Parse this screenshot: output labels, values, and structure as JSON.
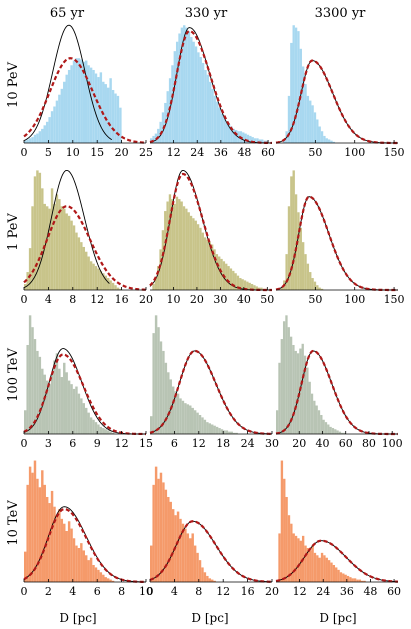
{
  "figure": {
    "column_titles": [
      "65 yr",
      "330 yr",
      "3300 yr"
    ],
    "row_labels": [
      "10 PeV",
      "1 PeV",
      "100 TeV",
      "10 TeV"
    ],
    "xlabel": "D [pc]",
    "colors": {
      "10 PeV": "#a8d8f0",
      "1 PeV": "#c8c48a",
      "100 TeV": "#b8c4b4",
      "10 TeV": "#f59a6a",
      "solid_curve": "#000000",
      "dashed_curve": "#b01818"
    }
  },
  "chart_data": [
    {
      "type": "bar",
      "row": "10 PeV",
      "column": "65 yr",
      "x_ticks": [
        0,
        5,
        10,
        15,
        20,
        25
      ],
      "xlim": [
        0,
        25
      ],
      "hist": {
        "start": 0,
        "bin_width": 0.5,
        "heights": [
          0.02,
          0.03,
          0.04,
          0.05,
          0.07,
          0.08,
          0.1,
          0.12,
          0.15,
          0.18,
          0.22,
          0.27,
          0.31,
          0.36,
          0.41,
          0.46,
          0.52,
          0.58,
          0.62,
          0.66,
          0.7,
          0.72,
          0.72,
          0.71,
          0.69,
          0.7,
          0.66,
          0.64,
          0.62,
          0.59,
          0.56,
          0.6,
          0.52,
          0.5,
          0.47,
          0.55,
          0.45,
          0.42,
          0.4,
          0.3,
          0.0,
          0.0,
          0.0,
          0.0,
          0.0,
          0.0,
          0.0,
          0.0,
          0.0,
          0.0
        ]
      },
      "solid": {
        "peak": 9.2,
        "sigma_left": 3.3,
        "sigma_right": 3.3,
        "amp": 1.0,
        "x_end": 18
      },
      "dashed": {
        "peak": 9.5,
        "sigma_left": 4.2,
        "sigma_right": 4.6,
        "amp": 0.72
      }
    },
    {
      "type": "bar",
      "row": "10 PeV",
      "column": "330 yr",
      "x_ticks": [
        12,
        24,
        36,
        48,
        60
      ],
      "xlim": [
        0,
        62
      ],
      "hist": {
        "start": 0,
        "bin_width": 1.2,
        "heights": [
          0.04,
          0.06,
          0.08,
          0.12,
          0.18,
          0.26,
          0.34,
          0.44,
          0.55,
          0.66,
          0.78,
          0.86,
          0.93,
          0.98,
          1.0,
          0.98,
          0.95,
          0.9,
          0.86,
          0.82,
          0.77,
          0.73,
          0.68,
          0.62,
          0.58,
          0.52,
          0.46,
          0.4,
          0.35,
          0.3,
          0.25,
          0.22,
          0.18,
          0.16,
          0.14,
          0.12,
          0.11,
          0.1,
          0.1,
          0.09,
          0.08,
          0.07,
          0.06,
          0.05,
          0.04,
          0.04,
          0.03,
          0.03,
          0.02,
          0.02,
          0.0
        ]
      },
      "solid": {
        "peak": 20,
        "sigma_left": 6.3,
        "sigma_right": 10.2,
        "amp": 0.98
      },
      "dashed": {
        "peak": 20,
        "sigma_left": 6.5,
        "sigma_right": 10.6,
        "amp": 0.95
      }
    },
    {
      "type": "bar",
      "row": "10 PeV",
      "column": "3300 yr",
      "x_ticks": [
        50,
        100,
        150
      ],
      "xlim": [
        0,
        155
      ],
      "hist": {
        "start": 0,
        "bin_width": 3,
        "heights": [
          0.0,
          0.0,
          0.0,
          0.02,
          0.1,
          0.4,
          0.85,
          1.0,
          0.98,
          0.95,
          0.8,
          0.65,
          0.5,
          0.4,
          0.36,
          0.32,
          0.26,
          0.2,
          0.14,
          0.1,
          0.06,
          0.04,
          0.03,
          0.02,
          0.01,
          0.0
        ]
      },
      "solid": {
        "peak": 46,
        "sigma_left": 14,
        "sigma_right": 26,
        "amp": 0.7
      },
      "dashed": {
        "peak": 46,
        "sigma_left": 14,
        "sigma_right": 26,
        "amp": 0.7
      }
    },
    {
      "type": "bar",
      "row": "1 PeV",
      "column": "65 yr",
      "x_ticks": [
        0,
        4,
        8,
        12,
        16,
        20
      ],
      "xlim": [
        0,
        20
      ],
      "hist": {
        "start": 0,
        "bin_width": 0.4,
        "heights": [
          0.05,
          0.15,
          0.35,
          0.7,
          0.95,
          1.0,
          0.98,
          0.85,
          0.72,
          0.7,
          0.68,
          0.85,
          0.72,
          0.8,
          0.76,
          0.7,
          0.68,
          0.64,
          0.62,
          0.58,
          0.54,
          0.48,
          0.44,
          0.4,
          0.36,
          0.32,
          0.28,
          0.24,
          0.22,
          0.2,
          0.18,
          0.16,
          0.14,
          0.12,
          0.1,
          0.08,
          0.06,
          0.04,
          0.02,
          0.01,
          0.0,
          0.0,
          0.0,
          0.0,
          0.0,
          0.0,
          0.0,
          0.0,
          0.0,
          0.0
        ]
      },
      "solid": {
        "peak": 7,
        "sigma_left": 2.5,
        "sigma_right": 2.9,
        "amp": 1.0,
        "x_end": 14
      },
      "dashed": {
        "peak": 7,
        "sigma_left": 3.2,
        "sigma_right": 3.8,
        "amp": 0.7
      }
    },
    {
      "type": "bar",
      "row": "1 PeV",
      "column": "330 yr",
      "x_ticks": [
        10,
        20,
        30,
        40,
        50
      ],
      "xlim": [
        0,
        52
      ],
      "hist": {
        "start": 0,
        "bin_width": 1,
        "heights": [
          0.0,
          0.05,
          0.1,
          0.2,
          0.34,
          0.5,
          0.66,
          0.74,
          0.8,
          0.76,
          0.72,
          0.78,
          0.76,
          0.74,
          0.7,
          0.68,
          0.65,
          0.62,
          0.6,
          0.58,
          0.55,
          0.52,
          0.48,
          0.44,
          0.42,
          0.4,
          0.38,
          0.34,
          0.3,
          0.28,
          0.26,
          0.24,
          0.22,
          0.2,
          0.18,
          0.16,
          0.14,
          0.12,
          0.1,
          0.09,
          0.08,
          0.07,
          0.06,
          0.05,
          0.04,
          0.03,
          0.02,
          0.02,
          0.01,
          0.01,
          0.0,
          0.0
        ]
      },
      "solid": {
        "peak": 14,
        "sigma_left": 5.3,
        "sigma_right": 8.2,
        "amp": 1.0
      },
      "dashed": {
        "peak": 14,
        "sigma_left": 5.5,
        "sigma_right": 8.5,
        "amp": 0.97
      }
    },
    {
      "type": "bar",
      "row": "1 PeV",
      "column": "3300 yr",
      "x_ticks": [
        50,
        100,
        150
      ],
      "xlim": [
        0,
        155
      ],
      "hist": {
        "start": 0,
        "bin_width": 3,
        "heights": [
          0.0,
          0.0,
          0.02,
          0.08,
          0.3,
          0.7,
          0.95,
          1.0,
          0.8,
          0.65,
          0.52,
          0.4,
          0.3,
          0.22,
          0.15,
          0.1,
          0.07,
          0.04,
          0.02,
          0.01,
          0.0
        ]
      },
      "solid": {
        "peak": 42,
        "sigma_left": 13,
        "sigma_right": 25,
        "amp": 0.78
      },
      "dashed": {
        "peak": 42,
        "sigma_left": 13,
        "sigma_right": 25,
        "amp": 0.78
      }
    },
    {
      "type": "bar",
      "row": "100 TeV",
      "column": "65 yr",
      "x_ticks": [
        0,
        3,
        6,
        9,
        12,
        15
      ],
      "xlim": [
        0,
        15
      ],
      "hist": {
        "start": 0,
        "bin_width": 0.3,
        "heights": [
          0.2,
          0.75,
          1.0,
          0.9,
          0.8,
          0.7,
          0.65,
          0.55,
          0.5,
          0.45,
          0.42,
          0.5,
          0.62,
          0.68,
          0.55,
          0.48,
          0.6,
          0.52,
          0.45,
          0.42,
          0.38,
          0.4,
          0.34,
          0.3,
          0.26,
          0.22,
          0.18,
          0.14,
          0.12,
          0.1,
          0.08,
          0.06,
          0.05,
          0.04,
          0.03,
          0.02,
          0.01,
          0.0,
          0.0,
          0.0,
          0.0,
          0.0,
          0.0,
          0.0,
          0.0,
          0.0,
          0.0,
          0.0,
          0.0,
          0.0
        ]
      },
      "solid": {
        "peak": 4.8,
        "sigma_left": 1.7,
        "sigma_right": 2.3,
        "amp": 0.72
      },
      "dashed": {
        "peak": 4.8,
        "sigma_left": 1.8,
        "sigma_right": 2.5,
        "amp": 0.67
      }
    },
    {
      "type": "bar",
      "row": "100 TeV",
      "column": "330 yr",
      "x_ticks": [
        6,
        12,
        18,
        24,
        30
      ],
      "xlim": [
        0,
        30
      ],
      "hist": {
        "start": 0,
        "bin_width": 0.6,
        "heights": [
          0.15,
          0.85,
          1.0,
          0.9,
          0.78,
          0.7,
          0.6,
          0.52,
          0.46,
          0.4,
          0.36,
          0.34,
          0.3,
          0.28,
          0.26,
          0.25,
          0.24,
          0.22,
          0.2,
          0.18,
          0.16,
          0.14,
          0.12,
          0.1,
          0.09,
          0.08,
          0.07,
          0.06,
          0.05,
          0.04,
          0.03,
          0.03,
          0.02,
          0.02,
          0.01,
          0.01,
          0.0,
          0.0,
          0.0,
          0.0,
          0.0,
          0.0,
          0.0,
          0.0,
          0.0,
          0.0,
          0.0,
          0.0,
          0.0,
          0.0
        ]
      },
      "solid": {
        "peak": 11,
        "sigma_left": 3.8,
        "sigma_right": 5.2,
        "amp": 0.7
      },
      "dashed": {
        "peak": 11,
        "sigma_left": 3.8,
        "sigma_right": 5.2,
        "amp": 0.7
      }
    },
    {
      "type": "bar",
      "row": "100 TeV",
      "column": "3300 yr",
      "x_ticks": [
        20,
        40,
        60,
        80,
        100
      ],
      "xlim": [
        0,
        105
      ],
      "hist": {
        "start": 0,
        "bin_width": 2,
        "heights": [
          0.2,
          0.6,
          0.8,
          0.95,
          1.0,
          0.9,
          0.82,
          0.75,
          0.7,
          0.68,
          0.72,
          0.76,
          0.66,
          0.56,
          0.44,
          0.34,
          0.28,
          0.24,
          0.2,
          0.16,
          0.12,
          0.1,
          0.08,
          0.06,
          0.05,
          0.04,
          0.03,
          0.02,
          0.01,
          0.01,
          0.0,
          0.0,
          0.0,
          0.0,
          0.0,
          0.0,
          0.0,
          0.0,
          0.0,
          0.0,
          0.0,
          0.0,
          0.0,
          0.0,
          0.0,
          0.0,
          0.0,
          0.0,
          0.0,
          0.0,
          0.0,
          0.0
        ]
      },
      "solid": {
        "peak": 32,
        "sigma_left": 10,
        "sigma_right": 16,
        "amp": 0.7
      },
      "dashed": {
        "peak": 32,
        "sigma_left": 10,
        "sigma_right": 16,
        "amp": 0.7
      }
    },
    {
      "type": "bar",
      "row": "10 TeV",
      "column": "65 yr",
      "x_ticks": [
        0,
        2,
        4,
        6,
        8,
        10
      ],
      "xlim": [
        0,
        10
      ],
      "hist": {
        "start": 0,
        "bin_width": 0.2,
        "heights": [
          0.25,
          0.8,
          0.95,
          0.9,
          1.0,
          0.85,
          0.78,
          0.92,
          0.8,
          0.7,
          0.65,
          0.75,
          0.62,
          0.55,
          0.6,
          0.52,
          0.48,
          0.42,
          0.5,
          0.44,
          0.36,
          0.3,
          0.28,
          0.32,
          0.26,
          0.22,
          0.18,
          0.2,
          0.14,
          0.12,
          0.1,
          0.08,
          0.06,
          0.04,
          0.03,
          0.02,
          0.01,
          0.0,
          0.0,
          0.0,
          0.0,
          0.0,
          0.0,
          0.0,
          0.0,
          0.0,
          0.0,
          0.0,
          0.0,
          0.0
        ]
      },
      "solid": {
        "peak": 3.3,
        "sigma_left": 1.3,
        "sigma_right": 1.8,
        "amp": 0.62
      },
      "dashed": {
        "peak": 3.3,
        "sigma_left": 1.3,
        "sigma_right": 1.8,
        "amp": 0.6
      }
    },
    {
      "type": "bar",
      "row": "10 TeV",
      "column": "330 yr",
      "x_ticks": [
        0,
        4,
        8,
        12,
        16,
        20
      ],
      "xlim": [
        0,
        20
      ],
      "hist": {
        "start": 0,
        "bin_width": 0.4,
        "heights": [
          0.3,
          0.8,
          0.95,
          0.85,
          0.9,
          0.82,
          0.76,
          0.7,
          0.66,
          0.6,
          0.55,
          0.58,
          0.52,
          0.48,
          0.44,
          0.4,
          0.36,
          0.4,
          0.3,
          0.24,
          0.18,
          0.12,
          0.08,
          0.05,
          0.03,
          0.02,
          0.01,
          0.0,
          0.0,
          0.0,
          0.0,
          0.0,
          0.0,
          0.0,
          0.0,
          0.0,
          0.0,
          0.0,
          0.0,
          0.0,
          0.0,
          0.0,
          0.0,
          0.0,
          0.0,
          0.0,
          0.0,
          0.0,
          0.0,
          0.0
        ]
      },
      "solid": {
        "peak": 7,
        "sigma_left": 2.7,
        "sigma_right": 3.8,
        "amp": 0.5
      },
      "dashed": {
        "peak": 7,
        "sigma_left": 2.7,
        "sigma_right": 3.8,
        "amp": 0.5
      }
    },
    {
      "type": "bar",
      "row": "10 TeV",
      "column": "3300 yr",
      "x_ticks": [
        12,
        24,
        36,
        48,
        60
      ],
      "xlim": [
        0,
        62
      ],
      "hist": {
        "start": 0,
        "bin_width": 1.2,
        "heights": [
          0.0,
          0.4,
          1.0,
          0.85,
          0.7,
          0.55,
          0.48,
          0.4,
          0.38,
          0.36,
          0.34,
          0.38,
          0.3,
          0.28,
          0.26,
          0.3,
          0.24,
          0.22,
          0.2,
          0.24,
          0.22,
          0.2,
          0.18,
          0.16,
          0.14,
          0.12,
          0.1,
          0.08,
          0.07,
          0.06,
          0.05,
          0.04,
          0.03,
          0.03,
          0.02,
          0.02,
          0.01,
          0.01,
          0.0,
          0.0,
          0.0,
          0.0,
          0.0,
          0.0,
          0.0,
          0.0,
          0.0,
          0.0,
          0.0,
          0.0,
          0.0,
          0.0
        ]
      },
      "solid": {
        "peak": 23,
        "sigma_left": 8.5,
        "sigma_right": 12.5,
        "amp": 0.34
      },
      "dashed": {
        "peak": 23,
        "sigma_left": 8.5,
        "sigma_right": 12.5,
        "amp": 0.34
      }
    }
  ]
}
